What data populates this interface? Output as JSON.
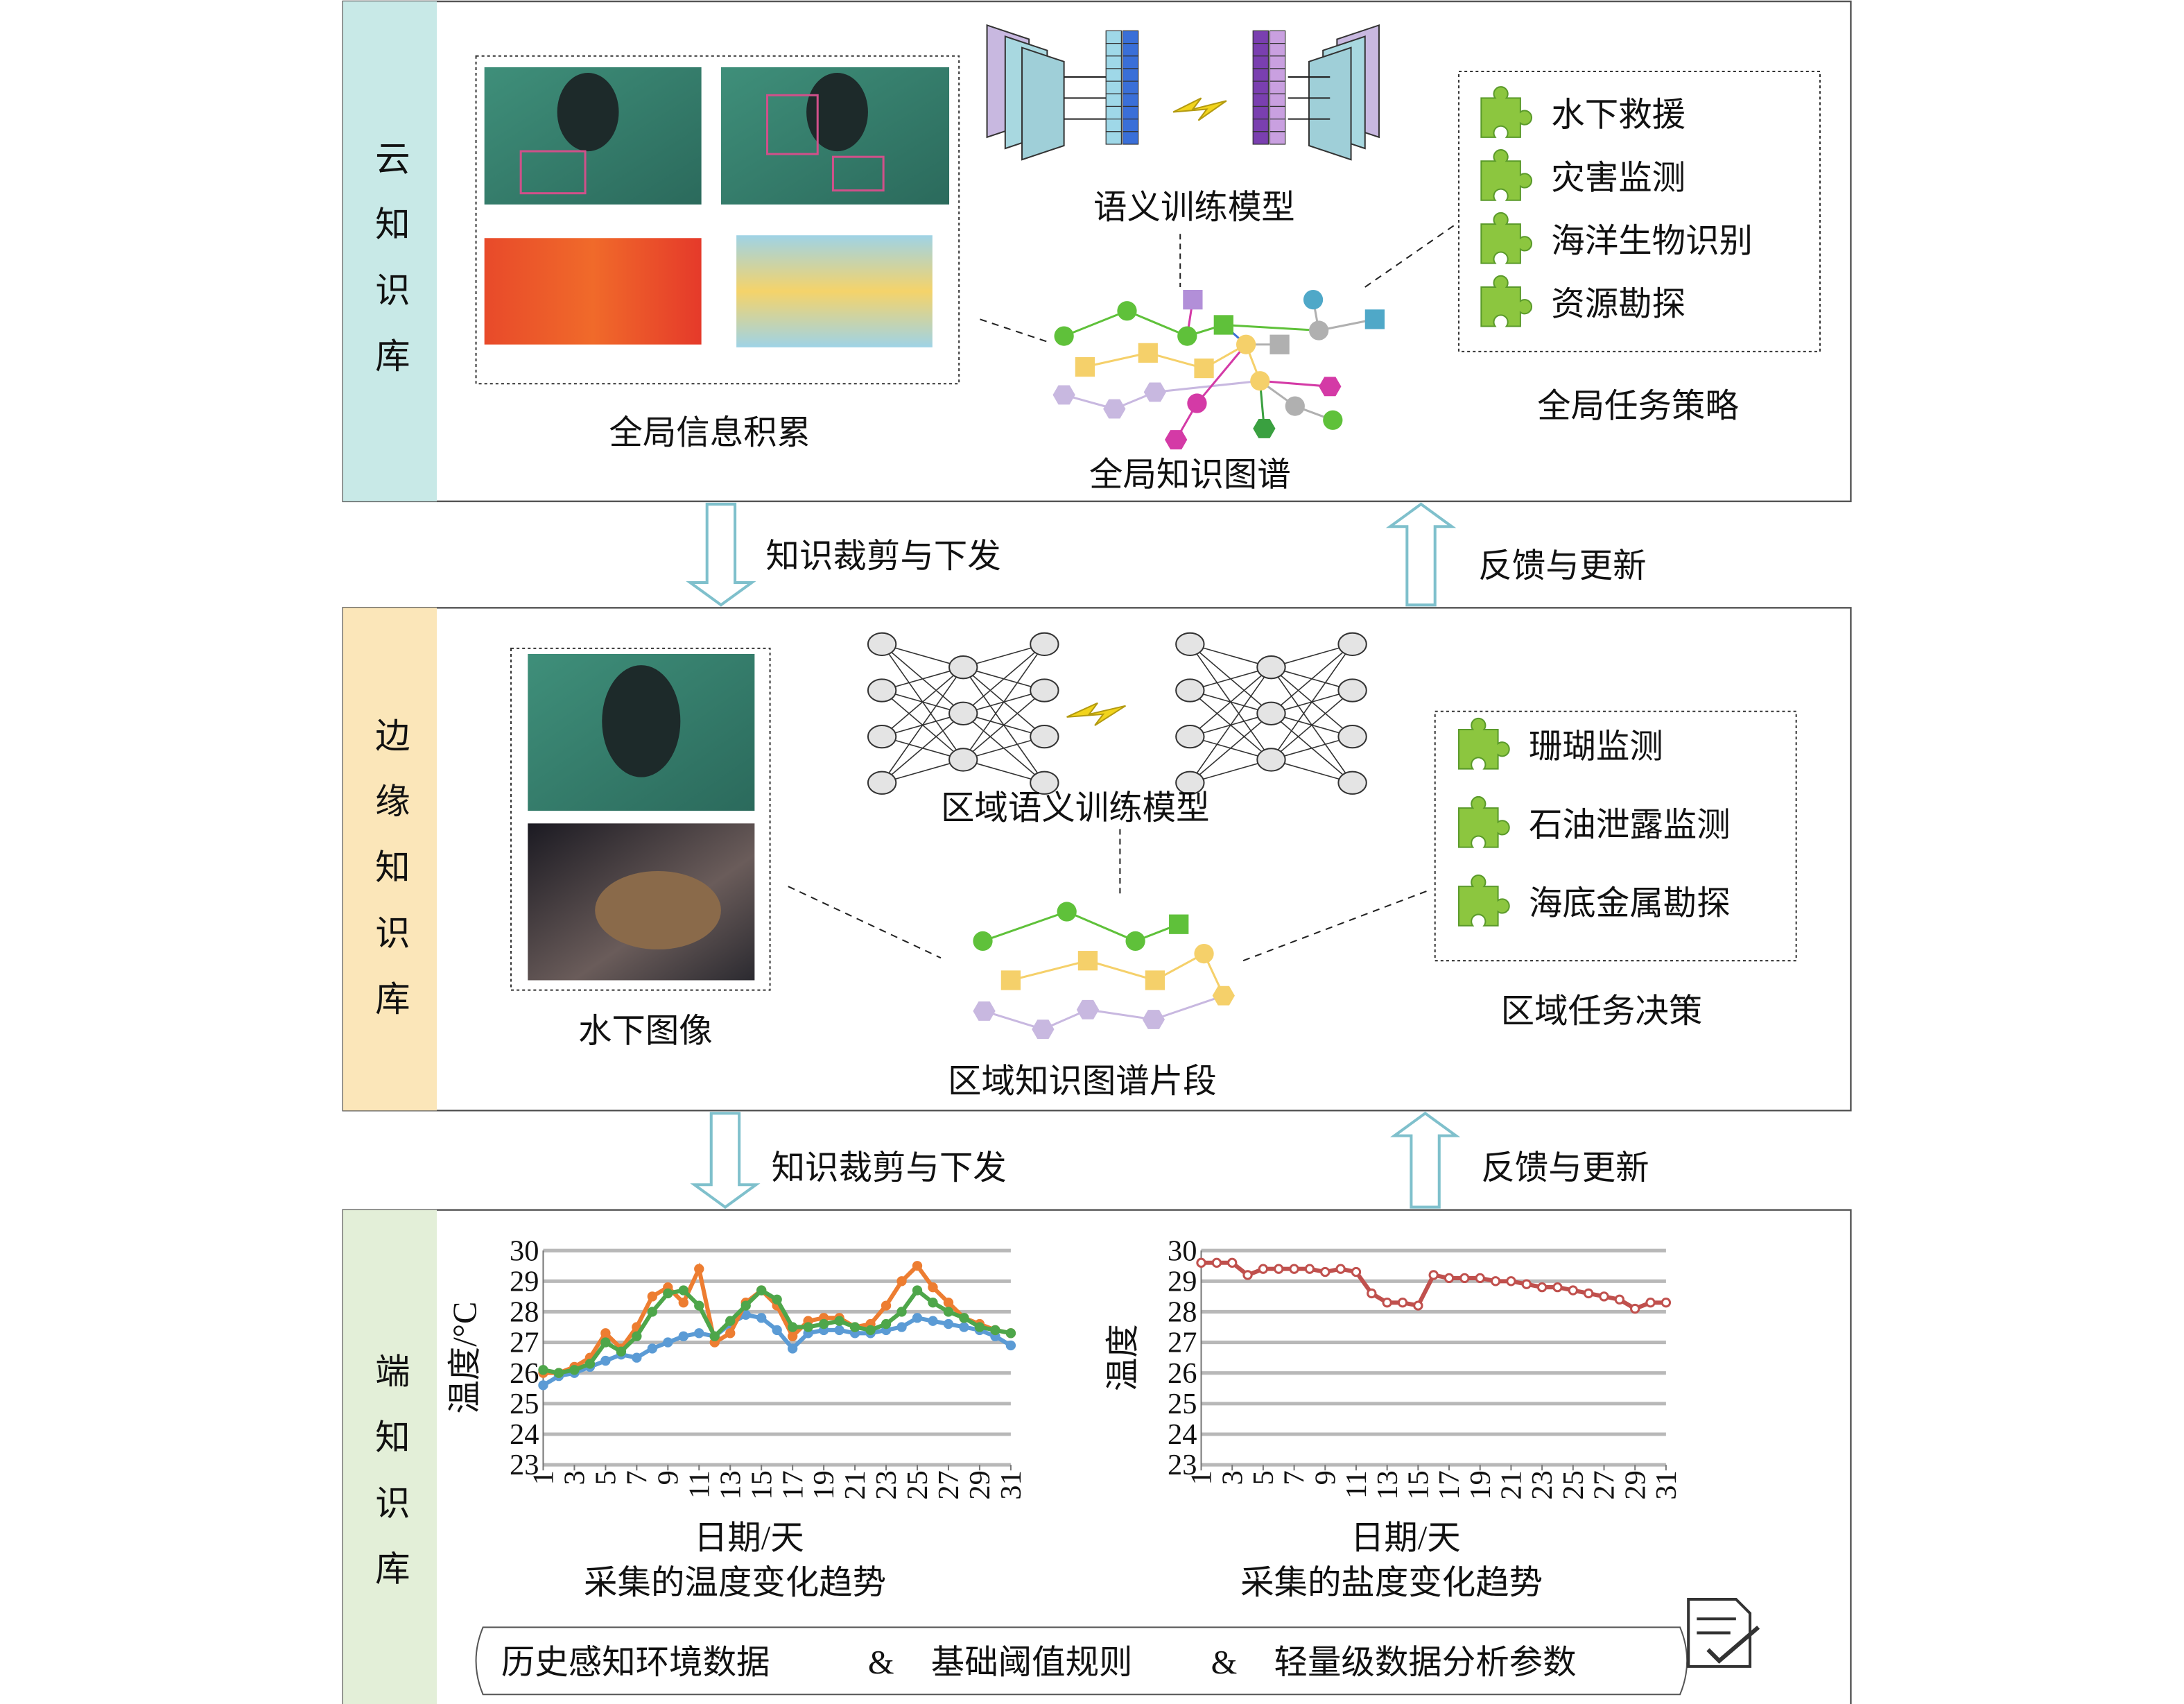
{
  "cloud": {
    "label": "云知识库",
    "model": "语义训练模型",
    "info": "全局信息积累",
    "graph": "全局知识图谱",
    "strategy_title": "全局任务策略",
    "tasks": [
      "水下救援",
      "灾害监测",
      "海洋生物识别",
      "资源勘探"
    ]
  },
  "arrows": {
    "down1": "知识裁剪与下发",
    "up1": "反馈与更新",
    "down2": "知识裁剪与下发",
    "up2": "反馈与更新"
  },
  "edge": {
    "label": "边缘知识库",
    "model": "区域语义训练模型",
    "images": "水下图像",
    "graph": "区域知识图谱片段",
    "decision_title": "区域任务决策",
    "tasks": [
      "珊瑚监测",
      "石油泄露监测",
      "海底金属勘探"
    ]
  },
  "device": {
    "label": "端知识库",
    "footer": [
      "历史感知环境数据",
      "&",
      "基础阈值规则",
      "&",
      "轻量级数据分析参数"
    ],
    "charts": [
      {
        "type": "line",
        "title": "采集的温度变化趋势",
        "xlabel": "日期/天",
        "ylabel": "温度/°C",
        "x": [
          1,
          2,
          3,
          4,
          5,
          6,
          7,
          8,
          9,
          10,
          11,
          12,
          13,
          14,
          15,
          16,
          17,
          18,
          19,
          20,
          21,
          22,
          23,
          24,
          25,
          26,
          27,
          28,
          29,
          30,
          31
        ],
        "xlim": [
          1,
          31
        ],
        "xticks": [
          1,
          3,
          5,
          7,
          9,
          11,
          13,
          15,
          17,
          19,
          21,
          23,
          25,
          27,
          29,
          31
        ],
        "ylim": [
          23,
          30
        ],
        "yticks": [
          23,
          24,
          25,
          26,
          27,
          28,
          29,
          30
        ],
        "grid": true,
        "series": [
          {
            "color": "#5b9bd5",
            "values": [
              25.6,
              25.9,
              26.0,
              26.2,
              26.4,
              26.6,
              26.5,
              26.8,
              27.0,
              27.2,
              27.3,
              27.2,
              27.6,
              27.9,
              27.8,
              27.4,
              26.8,
              27.3,
              27.4,
              27.4,
              27.3,
              27.3,
              27.4,
              27.5,
              27.8,
              27.7,
              27.6,
              27.5,
              27.4,
              27.2,
              26.9
            ]
          },
          {
            "color": "#ed7d31",
            "values": [
              26.0,
              26.0,
              26.2,
              26.5,
              27.3,
              26.8,
              27.5,
              28.5,
              28.8,
              28.3,
              29.4,
              27.0,
              27.3,
              28.3,
              28.7,
              28.2,
              27.2,
              27.7,
              27.8,
              27.8,
              27.5,
              27.6,
              28.2,
              29.0,
              29.5,
              28.8,
              28.3,
              27.8,
              27.6,
              27.4,
              27.3
            ]
          },
          {
            "color": "#4ea64a",
            "values": [
              26.1,
              26.0,
              26.1,
              26.3,
              27.0,
              26.7,
              27.2,
              28.0,
              28.6,
              28.7,
              28.2,
              27.2,
              27.7,
              28.2,
              28.7,
              28.4,
              27.5,
              27.5,
              27.6,
              27.7,
              27.5,
              27.4,
              27.6,
              28.0,
              28.7,
              28.3,
              28.0,
              27.8,
              27.5,
              27.4,
              27.3
            ]
          }
        ]
      },
      {
        "type": "line",
        "title": "采集的盐度变化趋势",
        "xlabel": "日期/天",
        "ylabel": "温度",
        "x": [
          1,
          2,
          3,
          4,
          5,
          6,
          7,
          8,
          9,
          10,
          11,
          12,
          13,
          14,
          15,
          16,
          17,
          18,
          19,
          20,
          21,
          22,
          23,
          24,
          25,
          26,
          27,
          28,
          29,
          30,
          31
        ],
        "xlim": [
          1,
          31
        ],
        "xticks": [
          1,
          3,
          5,
          7,
          9,
          11,
          13,
          15,
          17,
          19,
          21,
          23,
          25,
          27,
          29,
          31
        ],
        "ylim": [
          23,
          30
        ],
        "yticks": [
          23,
          24,
          25,
          26,
          27,
          28,
          29,
          30
        ],
        "grid": true,
        "series": [
          {
            "color": "#c0504d",
            "values": [
              29.6,
              29.6,
              29.6,
              29.2,
              29.4,
              29.4,
              29.4,
              29.4,
              29.3,
              29.4,
              29.3,
              28.6,
              28.3,
              28.3,
              28.2,
              29.2,
              29.1,
              29.1,
              29.1,
              29.0,
              29.0,
              28.9,
              28.8,
              28.8,
              28.7,
              28.6,
              28.5,
              28.4,
              28.1,
              28.3,
              28.3
            ]
          }
        ]
      }
    ]
  }
}
